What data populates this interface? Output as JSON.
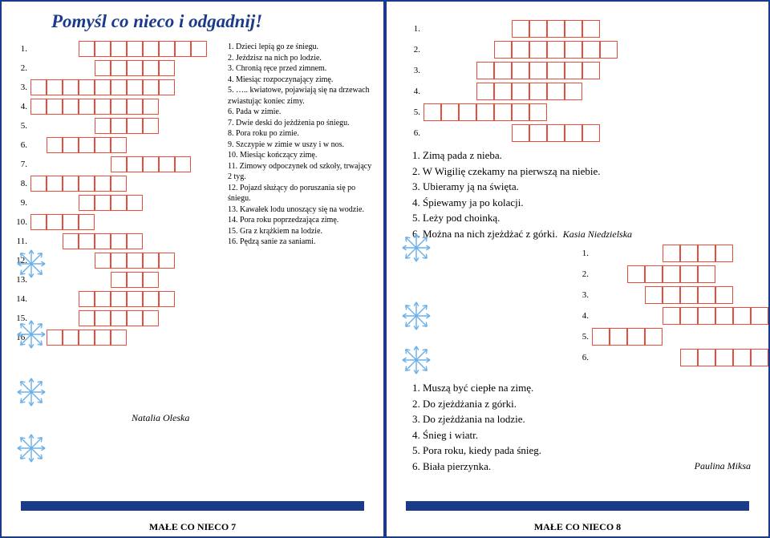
{
  "page7": {
    "title": "Pomyśl co nieco i odgadnij!",
    "clues": {
      "c1": "1. Dzieci lepią go ze śniegu.",
      "c2": "2. Jeździsz na nich po lodzie.",
      "c3": "3. Chronią ręce przed zimnem.",
      "c4": "4. Miesiąc rozpoczynający zimę.",
      "c5": "5. ….. kwiatowe, pojawiają się na drzewach zwiastując koniec zimy.",
      "c6": "6. Pada w zimie.",
      "c7": "7. Dwie deski do jeżdżenia po śniegu.",
      "c8": "8. Pora roku po zimie.",
      "c9": "9. Szczypie w zimie w uszy i w nos.",
      "c10": "10. Miesiąc kończący zimę.",
      "c11": "11. Zimowy odpoczynek od szkoły, trwający 2 tyg.",
      "c12": "12. Pojazd służący do poruszania się po śniegu.",
      "c13": "13. Kawałek lodu unoszący się na wodzie.",
      "c14": "14. Pora roku poprzedzająca zimę.",
      "c15": "15. Gra z krążkiem na lodzie.",
      "c16": "16. Pędzą sanie za saniami."
    },
    "author": "Natalia Oleska",
    "footer": "MAŁE CO NIECO  7"
  },
  "page8": {
    "p2clues": {
      "c1": "1.  Zimą pada z nieba.",
      "c2": "2.  W Wigilię czekamy na pierwszą na niebie.",
      "c3": "3.  Ubieramy ją na święta.",
      "c4": "4.  Śpiewamy ja po kolacji.",
      "c5": "5.  Leży pod choinką.",
      "c6": "6.  Można na nich zjeżdżać z górki."
    },
    "p2author": "Kasia Niedzielska",
    "p3clues": {
      "c1": "1.  Muszą być ciepłe na zimę.",
      "c2": "2.  Do zjeżdżania z górki.",
      "c3": "3.  Do zjeżdżania na lodzie.",
      "c4": "4.  Śnieg i wiatr.",
      "c5": "5.  Pora roku, kiedy pada śnieg.",
      "c6": "6.  Biała pierzynka."
    },
    "p3author": "Paulina Miksa",
    "footer": "MAŁE CO NIECO  8"
  },
  "grid1": [
    {
      "n": "1.",
      "indent": 3,
      "len": 8
    },
    {
      "n": "2.",
      "indent": 4,
      "len": 5
    },
    {
      "n": "3.",
      "indent": 0,
      "len": 9
    },
    {
      "n": "4.",
      "indent": 0,
      "len": 8
    },
    {
      "n": "5.",
      "indent": 4,
      "len": 4
    },
    {
      "n": "6.",
      "indent": 1,
      "len": 5
    },
    {
      "n": "7.",
      "indent": 5,
      "len": 5
    },
    {
      "n": "8.",
      "indent": 0,
      "len": 6
    },
    {
      "n": "9.",
      "indent": 3,
      "len": 4
    },
    {
      "n": "10.",
      "indent": 0,
      "len": 4
    },
    {
      "n": "11.",
      "indent": 2,
      "len": 5
    },
    {
      "n": "12.",
      "indent": 4,
      "len": 5
    },
    {
      "n": "13.",
      "indent": 5,
      "len": 3
    },
    {
      "n": "14.",
      "indent": 3,
      "len": 6
    },
    {
      "n": "15.",
      "indent": 3,
      "len": 5
    },
    {
      "n": "16.",
      "indent": 1,
      "len": 5
    }
  ],
  "grid2": [
    {
      "n": "1.",
      "indent": 5,
      "len": 5
    },
    {
      "n": "2.",
      "indent": 4,
      "len": 7
    },
    {
      "n": "3.",
      "indent": 3,
      "len": 7
    },
    {
      "n": "4.",
      "indent": 3,
      "len": 6
    },
    {
      "n": "5.",
      "indent": 0,
      "len": 7
    },
    {
      "n": "6.",
      "indent": 5,
      "len": 5
    }
  ],
  "grid3": [
    {
      "n": "1.",
      "indent": 4,
      "len": 4
    },
    {
      "n": "2.",
      "indent": 2,
      "len": 5
    },
    {
      "n": "3.",
      "indent": 3,
      "len": 5
    },
    {
      "n": "4.",
      "indent": 4,
      "len": 6
    },
    {
      "n": "5.",
      "indent": 0,
      "len": 4
    },
    {
      "n": "6.",
      "indent": 5,
      "len": 5
    }
  ],
  "colors": {
    "border": "#1a3a8a",
    "cell_border": "#e74c3c",
    "bg": "#ffffff"
  }
}
